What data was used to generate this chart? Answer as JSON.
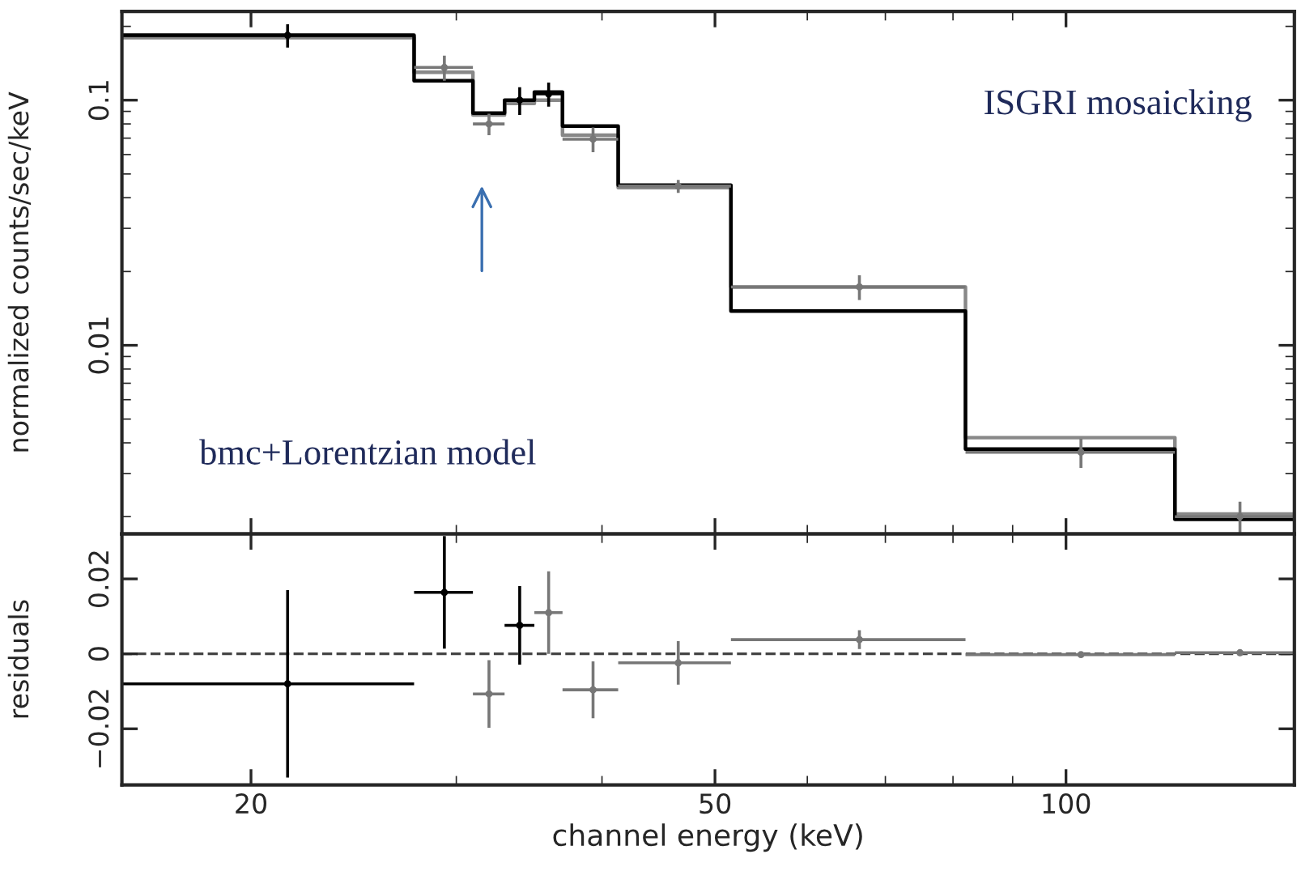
{
  "chart_data": [
    {
      "type": "scatter",
      "ylabel": "normalized counts/sec/keV",
      "log": "xy",
      "xlim": [
        15.5,
        157
      ],
      "xticks": [
        20,
        50,
        100
      ],
      "ylim": [
        0.0017,
        0.23
      ],
      "yticks": [
        0.1,
        0.01
      ],
      "tick_labels": "y",
      "grid": false,
      "legend": false,
      "annotations": [
        "ISGRI mosaicking",
        "bmc+Lorentzian model"
      ],
      "series": [
        {
          "type": "step",
          "color": "#888888",
          "x": [
            15.5,
            27.6,
            31.0,
            33.0,
            35.0,
            37.0,
            41.3,
            51.6,
            82,
            124,
            157
          ],
          "values": [
            0.18,
            0.13,
            0.087,
            0.097,
            0.1,
            0.072,
            0.044,
            0.0173,
            0.0042,
            0.00205,
            0.00205
          ]
        },
        {
          "type": "step",
          "color": "#000000",
          "x": [
            15.5,
            27.6,
            31.0,
            33.0,
            35.0,
            37.0,
            41.3,
            51.6,
            82,
            124,
            157
          ],
          "values": [
            0.184,
            0.12,
            0.0885,
            0.1,
            0.108,
            0.0784,
            0.045,
            0.0138,
            0.00377,
            0.00195,
            0.00195
          ]
        },
        {
          "type": "scatter",
          "marker": "circle",
          "x": [
            21.5,
            29.3,
            32.0,
            34.0,
            36.0,
            39.3,
            46.5,
            66.5,
            103,
            141
          ],
          "values": [
            0.184,
            0.136,
            0.08,
            0.1,
            0.106,
            0.0693,
            0.0446,
            0.0173,
            0.00366,
            0.002
          ],
          "errors": [
            0.02,
            0.016,
            0.008,
            0.013,
            0.012,
            0.008,
            0.0027,
            0.002,
            0.0005,
            0.0003
          ],
          "xerrors": [
            [
              15.5,
              27.6
            ],
            [
              27.6,
              31.0
            ],
            [
              31.0,
              33.0
            ],
            [
              33.0,
              35.0
            ],
            [
              35.0,
              37.0
            ],
            [
              37.0,
              41.3
            ],
            [
              41.3,
              51.6
            ],
            [
              51.6,
              82
            ],
            [
              82,
              124
            ],
            [
              124,
              157
            ]
          ],
          "colors": [
            "#000000",
            "#777777",
            "#777777",
            "#000000",
            "#000000",
            "#777777",
            "#777777",
            "#777777",
            "#777777",
            "#777777"
          ]
        }
      ]
    },
    {
      "type": "scatter",
      "xlabel": "channel energy (keV)",
      "ylabel": "residuals",
      "log": "x",
      "xlim": [
        15.5,
        157
      ],
      "xticks": [
        20,
        50,
        100
      ],
      "ylim": [
        -0.035,
        0.032
      ],
      "yticks": [
        {
          "value": -0.02,
          "label": "−0.02"
        },
        0,
        0.02
      ],
      "grid": false,
      "legend": false,
      "ref_lines": [
        {
          "axis": "y",
          "value": 0,
          "color": "#444444",
          "line_style": "dashed"
        }
      ],
      "series": [
        {
          "type": "scatter",
          "marker": "circle",
          "x": [
            21.5,
            29.3,
            32.0,
            34.0,
            36.0,
            39.3,
            46.5,
            66.5,
            103,
            141
          ],
          "values": [
            -0.008,
            0.0164,
            -0.0107,
            0.0076,
            0.011,
            -0.0096,
            -0.0024,
            0.0038,
            -0.0002,
            0.0003
          ],
          "errors": [
            0.025,
            0.015,
            0.009,
            0.0105,
            0.011,
            0.0076,
            0.0058,
            0.0025,
            null,
            null
          ],
          "xerrors": [
            [
              15.5,
              27.6
            ],
            [
              27.6,
              31.0
            ],
            [
              31.0,
              33.0
            ],
            [
              33.0,
              35.0
            ],
            [
              35.0,
              37.0
            ],
            [
              37.0,
              41.3
            ],
            [
              41.3,
              51.6
            ],
            [
              51.6,
              82
            ],
            [
              82,
              124
            ],
            [
              124,
              157
            ]
          ],
          "colors": [
            "#000000",
            "#000000",
            "#777777",
            "#000000",
            "#777777",
            "#777777",
            "#777777",
            "#777777",
            "#777777",
            "#777777"
          ]
        }
      ]
    }
  ]
}
